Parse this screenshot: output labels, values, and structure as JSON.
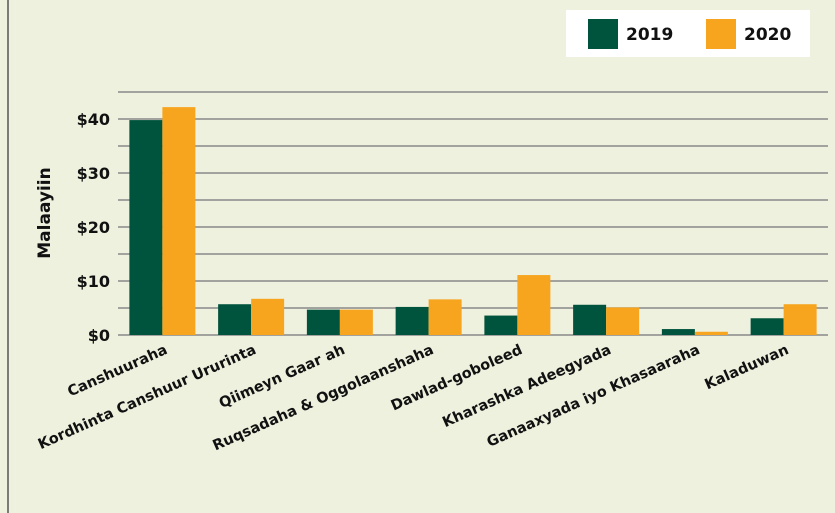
{
  "chart_data": {
    "type": "bar",
    "y_label": "Malaayiin",
    "categories": [
      "Canshuuraha",
      "Kordhinta Canshuur Ururinta",
      "Qiimeyn Gaar ah",
      "Ruqsadaha & Oggolaanshaha",
      "Dawlad-goboleed",
      "Kharashka Adeegyada",
      "Ganaaxyada iyo Khasaaraha",
      "Kaladuwan"
    ],
    "series": [
      {
        "name": "2019",
        "color": "#00533c",
        "values": [
          39.8,
          5.7,
          4.7,
          5.2,
          3.6,
          5.6,
          1.1,
          3.1
        ]
      },
      {
        "name": "2020",
        "color": "#f7a51e",
        "values": [
          42.2,
          6.7,
          4.7,
          6.6,
          11.1,
          5.1,
          0.6,
          5.7
        ]
      }
    ],
    "ylim": [
      0,
      45
    ],
    "yticks": [
      {
        "value": 0,
        "label": "$0"
      },
      {
        "value": 10,
        "label": "$10"
      },
      {
        "value": 20,
        "label": "$20"
      },
      {
        "value": 30,
        "label": "$30"
      },
      {
        "value": 40,
        "label": "$40"
      }
    ],
    "minor_yticks": [
      5,
      15,
      25,
      35,
      45
    ],
    "grid": true,
    "legend": "top-right"
  }
}
